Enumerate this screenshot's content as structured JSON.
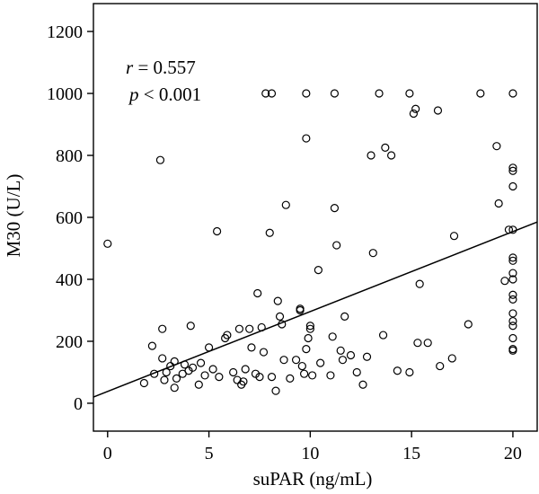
{
  "chart_data": {
    "type": "scatter",
    "title": "",
    "xlabel": "suPAR (ng/mL)",
    "ylabel": "M30 (U/L)",
    "xlim": [
      -0.7,
      21.2
    ],
    "ylim": [
      -90,
      1290
    ],
    "x_ticks": [
      0,
      5,
      10,
      15,
      20
    ],
    "y_ticks": [
      0,
      200,
      400,
      600,
      800,
      1000,
      1200
    ],
    "grid": false,
    "legend": "none",
    "annotations": {
      "r_symbol": "r",
      "r_value": " = 0.557",
      "p_symbol": "p",
      "p_value": " < 0.001"
    },
    "regression_line": {
      "x": [
        -0.7,
        21.2
      ],
      "y": [
        20,
        585
      ]
    },
    "points": [
      {
        "x": 0.0,
        "y": 515
      },
      {
        "x": 1.8,
        "y": 65
      },
      {
        "x": 2.2,
        "y": 185
      },
      {
        "x": 2.3,
        "y": 95
      },
      {
        "x": 2.6,
        "y": 785
      },
      {
        "x": 2.7,
        "y": 240
      },
      {
        "x": 2.7,
        "y": 145
      },
      {
        "x": 2.8,
        "y": 75
      },
      {
        "x": 2.9,
        "y": 100
      },
      {
        "x": 3.1,
        "y": 120
      },
      {
        "x": 3.3,
        "y": 135
      },
      {
        "x": 3.4,
        "y": 80
      },
      {
        "x": 3.3,
        "y": 50
      },
      {
        "x": 3.7,
        "y": 95
      },
      {
        "x": 3.8,
        "y": 125
      },
      {
        "x": 4.0,
        "y": 105
      },
      {
        "x": 4.1,
        "y": 250
      },
      {
        "x": 4.2,
        "y": 115
      },
      {
        "x": 4.5,
        "y": 60
      },
      {
        "x": 4.6,
        "y": 130
      },
      {
        "x": 4.8,
        "y": 90
      },
      {
        "x": 5.0,
        "y": 180
      },
      {
        "x": 5.2,
        "y": 110
      },
      {
        "x": 5.4,
        "y": 555
      },
      {
        "x": 5.5,
        "y": 85
      },
      {
        "x": 5.8,
        "y": 210
      },
      {
        "x": 5.9,
        "y": 220
      },
      {
        "x": 6.2,
        "y": 100
      },
      {
        "x": 6.4,
        "y": 75
      },
      {
        "x": 6.5,
        "y": 240
      },
      {
        "x": 6.6,
        "y": 60
      },
      {
        "x": 6.7,
        "y": 70
      },
      {
        "x": 6.8,
        "y": 110
      },
      {
        "x": 7.0,
        "y": 240
      },
      {
        "x": 7.1,
        "y": 180
      },
      {
        "x": 7.3,
        "y": 95
      },
      {
        "x": 7.4,
        "y": 355
      },
      {
        "x": 7.5,
        "y": 85
      },
      {
        "x": 7.6,
        "y": 245
      },
      {
        "x": 7.7,
        "y": 165
      },
      {
        "x": 7.8,
        "y": 1000
      },
      {
        "x": 8.0,
        "y": 550
      },
      {
        "x": 8.1,
        "y": 1000
      },
      {
        "x": 8.1,
        "y": 85
      },
      {
        "x": 8.3,
        "y": 40
      },
      {
        "x": 8.4,
        "y": 330
      },
      {
        "x": 8.5,
        "y": 280
      },
      {
        "x": 8.6,
        "y": 255
      },
      {
        "x": 8.7,
        "y": 140
      },
      {
        "x": 8.8,
        "y": 640
      },
      {
        "x": 9.0,
        "y": 80
      },
      {
        "x": 9.3,
        "y": 140
      },
      {
        "x": 9.5,
        "y": 305
      },
      {
        "x": 9.5,
        "y": 300
      },
      {
        "x": 9.6,
        "y": 120
      },
      {
        "x": 9.7,
        "y": 95
      },
      {
        "x": 9.8,
        "y": 855
      },
      {
        "x": 9.8,
        "y": 1000
      },
      {
        "x": 9.8,
        "y": 175
      },
      {
        "x": 9.9,
        "y": 210
      },
      {
        "x": 10.0,
        "y": 250
      },
      {
        "x": 10.0,
        "y": 240
      },
      {
        "x": 10.1,
        "y": 90
      },
      {
        "x": 10.4,
        "y": 430
      },
      {
        "x": 10.5,
        "y": 130
      },
      {
        "x": 11.0,
        "y": 90
      },
      {
        "x": 11.1,
        "y": 215
      },
      {
        "x": 11.2,
        "y": 1000
      },
      {
        "x": 11.2,
        "y": 630
      },
      {
        "x": 11.3,
        "y": 510
      },
      {
        "x": 11.5,
        "y": 170
      },
      {
        "x": 11.6,
        "y": 140
      },
      {
        "x": 11.7,
        "y": 280
      },
      {
        "x": 12.0,
        "y": 155
      },
      {
        "x": 12.3,
        "y": 100
      },
      {
        "x": 12.6,
        "y": 60
      },
      {
        "x": 12.8,
        "y": 150
      },
      {
        "x": 13.0,
        "y": 800
      },
      {
        "x": 13.1,
        "y": 485
      },
      {
        "x": 13.4,
        "y": 1000
      },
      {
        "x": 13.6,
        "y": 220
      },
      {
        "x": 13.7,
        "y": 825
      },
      {
        "x": 14.0,
        "y": 800
      },
      {
        "x": 14.3,
        "y": 105
      },
      {
        "x": 14.9,
        "y": 1000
      },
      {
        "x": 14.9,
        "y": 100
      },
      {
        "x": 15.1,
        "y": 935
      },
      {
        "x": 15.2,
        "y": 950
      },
      {
        "x": 15.3,
        "y": 195
      },
      {
        "x": 15.4,
        "y": 385
      },
      {
        "x": 15.8,
        "y": 195
      },
      {
        "x": 16.3,
        "y": 945
      },
      {
        "x": 16.4,
        "y": 120
      },
      {
        "x": 17.0,
        "y": 145
      },
      {
        "x": 17.1,
        "y": 540
      },
      {
        "x": 17.8,
        "y": 255
      },
      {
        "x": 18.4,
        "y": 1000
      },
      {
        "x": 19.2,
        "y": 830
      },
      {
        "x": 19.3,
        "y": 645
      },
      {
        "x": 19.6,
        "y": 395
      },
      {
        "x": 19.8,
        "y": 560
      },
      {
        "x": 20.0,
        "y": 1000
      },
      {
        "x": 20.0,
        "y": 760
      },
      {
        "x": 20.0,
        "y": 750
      },
      {
        "x": 20.0,
        "y": 700
      },
      {
        "x": 20.0,
        "y": 560
      },
      {
        "x": 20.0,
        "y": 470
      },
      {
        "x": 20.0,
        "y": 460
      },
      {
        "x": 20.0,
        "y": 420
      },
      {
        "x": 20.0,
        "y": 400
      },
      {
        "x": 20.0,
        "y": 350
      },
      {
        "x": 20.0,
        "y": 335
      },
      {
        "x": 20.0,
        "y": 290
      },
      {
        "x": 20.0,
        "y": 265
      },
      {
        "x": 20.0,
        "y": 250
      },
      {
        "x": 20.0,
        "y": 210
      },
      {
        "x": 20.0,
        "y": 175
      },
      {
        "x": 20.0,
        "y": 170
      }
    ]
  }
}
